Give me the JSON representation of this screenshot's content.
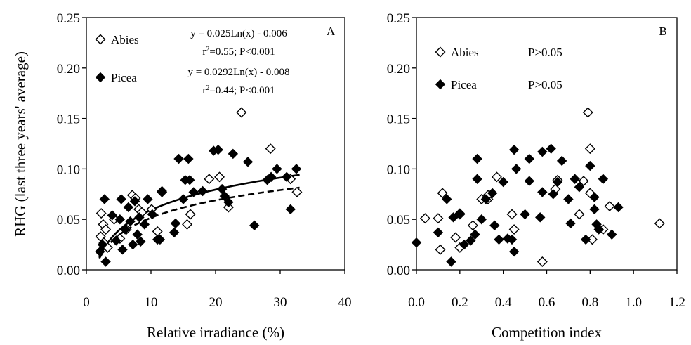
{
  "ylabel": "RHG (last three years' average)",
  "chart_data": [
    {
      "type": "scatter",
      "panel": "A",
      "xlabel": "Relative irradiance (%)",
      "xlim": [
        0,
        40
      ],
      "ylim": [
        0,
        0.25
      ],
      "xticks": [
        "0",
        "10",
        "20",
        "30",
        "40"
      ],
      "yticks": [
        "0.00",
        "0.05",
        "0.10",
        "0.15",
        "0.20",
        "0.25"
      ],
      "legend_placement": "top-left",
      "annotations": [
        {
          "series": "Abies",
          "equation": "y = 0.025Ln(x) - 0.006",
          "r2_prefix": "r",
          "r2_sup": "2",
          "r2_rest": "=0.55; P<0.001"
        },
        {
          "series": "Picea",
          "equation": "y = 0.0292Ln(x) - 0.008",
          "r2_prefix": "r",
          "r2_sup": "2",
          "r2_rest": "=0.44; P<0.001"
        }
      ],
      "fits": [
        {
          "series": "Abies",
          "a": 0.025,
          "b": -0.006,
          "style": "dashed"
        },
        {
          "series": "Picea",
          "a": 0.0292,
          "b": -0.008,
          "style": "solid"
        }
      ],
      "series": [
        {
          "name": "Abies",
          "marker": "open-diamond",
          "points": [
            [
              2.2,
              0.033
            ],
            [
              2.3,
              0.056
            ],
            [
              2.6,
              0.045
            ],
            [
              2.7,
              0.027
            ],
            [
              3.0,
              0.04
            ],
            [
              3.3,
              0.022
            ],
            [
              4.3,
              0.05
            ],
            [
              5.2,
              0.031
            ],
            [
              6.2,
              0.04
            ],
            [
              7.1,
              0.074
            ],
            [
              7.6,
              0.071
            ],
            [
              8.1,
              0.06
            ],
            [
              8.6,
              0.057
            ],
            [
              10.1,
              0.06
            ],
            [
              11.0,
              0.038
            ],
            [
              11.7,
              0.077
            ],
            [
              15.6,
              0.045
            ],
            [
              16.1,
              0.055
            ],
            [
              19.0,
              0.09
            ],
            [
              20.6,
              0.092
            ],
            [
              22.0,
              0.062
            ],
            [
              24.0,
              0.156
            ],
            [
              28.5,
              0.12
            ],
            [
              31.6,
              0.09
            ],
            [
              32.6,
              0.077
            ]
          ]
        },
        {
          "name": "Picea",
          "marker": "filled-diamond",
          "points": [
            [
              2.1,
              0.018
            ],
            [
              2.5,
              0.025
            ],
            [
              2.8,
              0.07
            ],
            [
              3.0,
              0.008
            ],
            [
              4.0,
              0.054
            ],
            [
              4.6,
              0.029
            ],
            [
              5.2,
              0.05
            ],
            [
              5.4,
              0.07
            ],
            [
              5.6,
              0.02
            ],
            [
              6.0,
              0.04
            ],
            [
              6.5,
              0.062
            ],
            [
              6.8,
              0.048
            ],
            [
              7.2,
              0.025
            ],
            [
              7.5,
              0.068
            ],
            [
              7.9,
              0.035
            ],
            [
              8.2,
              0.052
            ],
            [
              8.4,
              0.028
            ],
            [
              9.0,
              0.045
            ],
            [
              9.5,
              0.07
            ],
            [
              10.2,
              0.055
            ],
            [
              11.0,
              0.03
            ],
            [
              11.4,
              0.03
            ],
            [
              11.7,
              0.078
            ],
            [
              13.6,
              0.037
            ],
            [
              13.8,
              0.046
            ],
            [
              14.3,
              0.11
            ],
            [
              15.0,
              0.07
            ],
            [
              15.3,
              0.089
            ],
            [
              15.8,
              0.11
            ],
            [
              16.0,
              0.089
            ],
            [
              16.6,
              0.077
            ],
            [
              18.0,
              0.078
            ],
            [
              19.7,
              0.118
            ],
            [
              20.4,
              0.119
            ],
            [
              21.0,
              0.08
            ],
            [
              21.4,
              0.073
            ],
            [
              22.0,
              0.067
            ],
            [
              22.7,
              0.115
            ],
            [
              25.0,
              0.107
            ],
            [
              26.0,
              0.044
            ],
            [
              28.0,
              0.089
            ],
            [
              28.6,
              0.092
            ],
            [
              29.5,
              0.1
            ],
            [
              31.0,
              0.092
            ],
            [
              31.6,
              0.06
            ],
            [
              32.5,
              0.1
            ]
          ]
        }
      ]
    },
    {
      "type": "scatter",
      "panel": "B",
      "xlabel": "Competition index",
      "xlim": [
        0,
        1.2
      ],
      "ylim": [
        0,
        0.25
      ],
      "xticks": [
        "0.0",
        "0.2",
        "0.4",
        "0.6",
        "0.8",
        "1.0",
        "1.2"
      ],
      "yticks": [
        "0.00",
        "0.05",
        "0.10",
        "0.15",
        "0.20",
        "0.25"
      ],
      "legend_placement": "top-left",
      "annotations": [
        {
          "series": "Abies",
          "text": "P>0.05"
        },
        {
          "series": "Picea",
          "text": "P>0.05"
        }
      ],
      "series": [
        {
          "name": "Abies",
          "marker": "open-diamond",
          "points": [
            [
              0.04,
              0.051
            ],
            [
              0.1,
              0.051
            ],
            [
              0.11,
              0.02
            ],
            [
              0.12,
              0.076
            ],
            [
              0.18,
              0.032
            ],
            [
              0.2,
              0.022
            ],
            [
              0.2,
              0.055
            ],
            [
              0.26,
              0.044
            ],
            [
              0.3,
              0.07
            ],
            [
              0.33,
              0.07
            ],
            [
              0.33,
              0.074
            ],
            [
              0.37,
              0.092
            ],
            [
              0.44,
              0.055
            ],
            [
              0.45,
              0.04
            ],
            [
              0.58,
              0.008
            ],
            [
              0.64,
              0.08
            ],
            [
              0.65,
              0.089
            ],
            [
              0.75,
              0.055
            ],
            [
              0.77,
              0.088
            ],
            [
              0.79,
              0.156
            ],
            [
              0.8,
              0.12
            ],
            [
              0.8,
              0.076
            ],
            [
              0.81,
              0.03
            ],
            [
              0.86,
              0.04
            ],
            [
              0.89,
              0.063
            ],
            [
              1.12,
              0.046
            ]
          ]
        },
        {
          "name": "Picea",
          "marker": "filled-diamond",
          "points": [
            [
              0.0,
              0.027
            ],
            [
              0.1,
              0.037
            ],
            [
              0.14,
              0.07
            ],
            [
              0.16,
              0.008
            ],
            [
              0.17,
              0.052
            ],
            [
              0.2,
              0.056
            ],
            [
              0.22,
              0.025
            ],
            [
              0.25,
              0.029
            ],
            [
              0.27,
              0.035
            ],
            [
              0.28,
              0.11
            ],
            [
              0.28,
              0.09
            ],
            [
              0.3,
              0.05
            ],
            [
              0.32,
              0.07
            ],
            [
              0.35,
              0.076
            ],
            [
              0.36,
              0.044
            ],
            [
              0.38,
              0.03
            ],
            [
              0.4,
              0.087
            ],
            [
              0.42,
              0.031
            ],
            [
              0.44,
              0.03
            ],
            [
              0.45,
              0.018
            ],
            [
              0.45,
              0.119
            ],
            [
              0.46,
              0.1
            ],
            [
              0.5,
              0.055
            ],
            [
              0.52,
              0.11
            ],
            [
              0.52,
              0.088
            ],
            [
              0.57,
              0.052
            ],
            [
              0.58,
              0.077
            ],
            [
              0.58,
              0.117
            ],
            [
              0.62,
              0.12
            ],
            [
              0.63,
              0.075
            ],
            [
              0.65,
              0.087
            ],
            [
              0.67,
              0.108
            ],
            [
              0.7,
              0.07
            ],
            [
              0.71,
              0.046
            ],
            [
              0.73,
              0.09
            ],
            [
              0.75,
              0.082
            ],
            [
              0.78,
              0.03
            ],
            [
              0.8,
              0.103
            ],
            [
              0.82,
              0.06
            ],
            [
              0.82,
              0.072
            ],
            [
              0.83,
              0.045
            ],
            [
              0.84,
              0.04
            ],
            [
              0.86,
              0.09
            ],
            [
              0.9,
              0.035
            ],
            [
              0.93,
              0.062
            ]
          ]
        }
      ]
    }
  ]
}
